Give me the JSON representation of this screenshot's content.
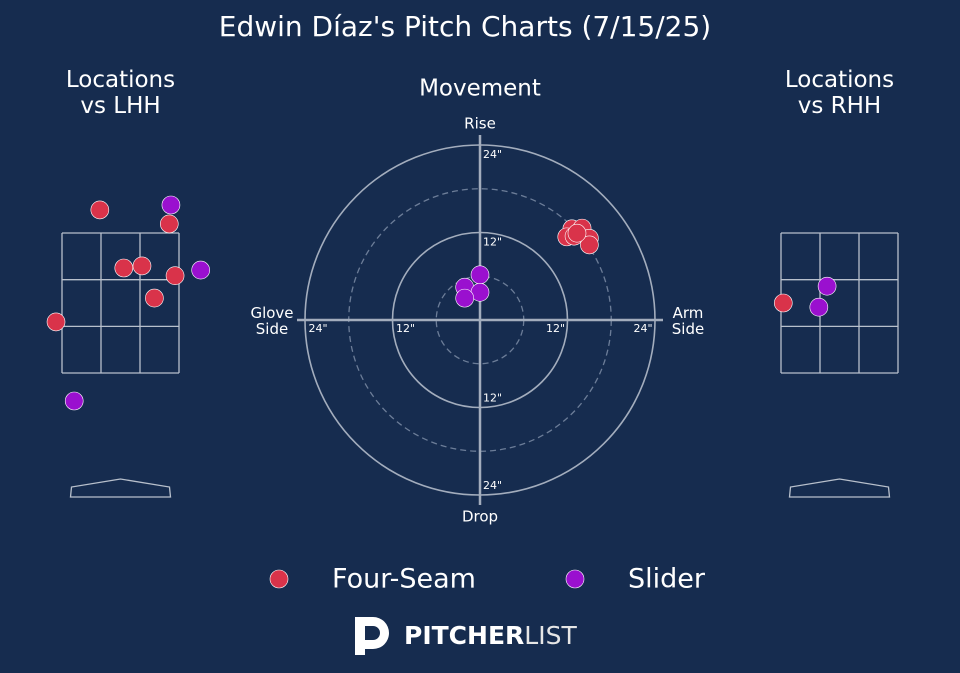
{
  "title": "Edwin Díaz's Pitch Charts (7/15/25)",
  "chart_data": [
    {
      "type": "location",
      "title": "Locations\nvs LHH",
      "xlim": [
        -1.5,
        1.5
      ],
      "ylim": [
        0,
        4.5
      ],
      "series": [
        {
          "name": "Four-Seam",
          "color": "#d9334a",
          "x": [
            -0.25,
            0.59,
            0.04,
            0.26,
            0.66,
            0.41,
            -0.78
          ],
          "values": [
            3.83,
            3.63,
            3.0,
            3.03,
            2.89,
            2.57,
            2.23
          ]
        },
        {
          "name": "Slider",
          "color": "#9a10cf",
          "x": [
            0.61,
            0.97,
            -0.56
          ],
          "values": [
            3.9,
            2.97,
            1.1
          ]
        }
      ]
    },
    {
      "type": "movement",
      "title": "Movement",
      "rlim": [
        0,
        24
      ],
      "axis_labels": {
        "top": "Rise",
        "bottom": "Drop",
        "left": "Glove\nSide",
        "right": "Arm\nSide"
      },
      "rticks": [
        {
          "value": 12,
          "label": "12\""
        },
        {
          "value": 24,
          "label": "24\""
        }
      ],
      "minor_rticks": [
        6,
        18
      ],
      "series": [
        {
          "name": "Four-Seam",
          "color": "#d9334a",
          "x": [
            12.6,
            14.0,
            15.0,
            15.0,
            11.9,
            12.9,
            13.3
          ],
          "values": [
            12.5,
            12.6,
            11.2,
            10.3,
            11.4,
            11.5,
            11.9
          ]
        },
        {
          "name": "Slider",
          "color": "#9a10cf",
          "x": [
            0,
            -2.1,
            0,
            -2.1
          ],
          "values": [
            6.2,
            4.5,
            3.8,
            3.0
          ]
        }
      ]
    },
    {
      "type": "location",
      "title": "Locations\nvs RHH",
      "xlim": [
        -1.5,
        1.5
      ],
      "ylim": [
        0,
        4.5
      ],
      "series": [
        {
          "name": "Four-Seam",
          "color": "#d9334a",
          "x": [
            -0.68
          ],
          "values": [
            2.5
          ]
        },
        {
          "name": "Slider",
          "color": "#9a10cf",
          "x": [
            -0.15,
            -0.25
          ],
          "values": [
            2.74,
            2.44
          ]
        }
      ]
    }
  ],
  "logo": {
    "bold": "PITCHER",
    "light": "LIST"
  }
}
